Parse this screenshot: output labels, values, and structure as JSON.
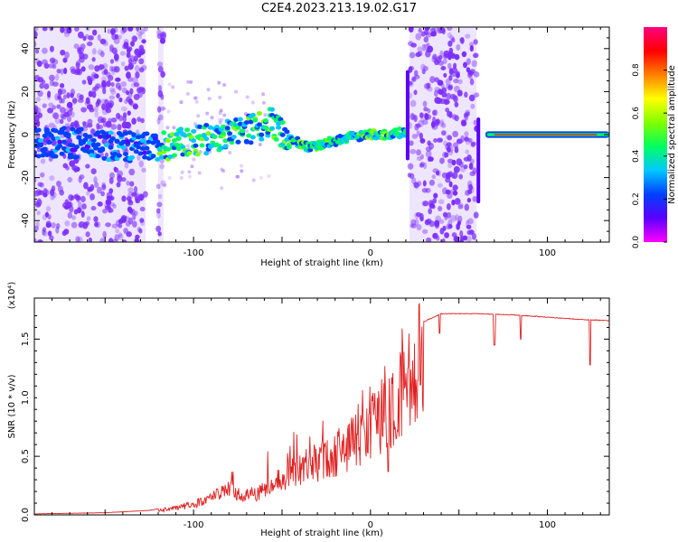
{
  "title": "C2E4.2023.213.19.02.G17",
  "colors": {
    "snr_line": "#e02020",
    "scatter": "#7b2cff",
    "background_noise": "#cdb6ff",
    "colorbar_stops": [
      "#ff00ff",
      "#5a00ff",
      "#0040ff",
      "#00c8ff",
      "#00ff60",
      "#80ff00",
      "#ffff00",
      "#ff8000",
      "#ff0000",
      "#ff0080"
    ]
  },
  "chart_data": [
    {
      "type": "heatmap",
      "xlabel": "Height of straight line (km)",
      "ylabel": "Frequency (Hz)",
      "xlim": [
        -190,
        135
      ],
      "ylim": [
        -50,
        50
      ],
      "xticks": [
        "-100",
        "0",
        "100"
      ],
      "yticks": [
        "-40",
        "-20",
        "0",
        "20",
        "40"
      ],
      "colorbar": {
        "label": "Normalized spectral amplitude",
        "range": [
          0.0,
          1.0
        ],
        "ticks": [
          "0.0",
          "0.2",
          "0.4",
          "0.6",
          "0.8"
        ]
      },
      "trace_frequency": {
        "x": [
          -190,
          -170,
          -150,
          -135,
          -120,
          -105,
          -90,
          -75,
          -65,
          -55,
          -50,
          -45,
          -40,
          -35,
          -30,
          -20,
          -10,
          0,
          10,
          18,
          65,
          80,
          100,
          120,
          135
        ],
        "y": [
          -3,
          -4,
          -5,
          -6,
          -6,
          -4,
          -2,
          1,
          4,
          6,
          0,
          -2,
          -4,
          -6,
          -5,
          -3,
          -1,
          0,
          0,
          1,
          0,
          0,
          0,
          0,
          0
        ]
      },
      "noise_bands_km": [
        [
          -190,
          -127
        ],
        [
          -120,
          -117
        ],
        [
          22,
          60
        ]
      ]
    },
    {
      "type": "line",
      "xlabel": "Height of straight line (km)",
      "ylabel": "SNR (10 * v/v)",
      "y_scale_note": "(x10⁴)",
      "xlim": [
        -190,
        135
      ],
      "ylim": [
        0.0,
        1.85
      ],
      "xticks": [
        "-100",
        "0",
        "100"
      ],
      "yticks": [
        "0.0",
        "0.5",
        "1.0",
        "1.5"
      ],
      "envelope": {
        "x": [
          -190,
          -150,
          -125,
          -110,
          -95,
          -85,
          -80,
          -70,
          -60,
          -50,
          -40,
          -30,
          -20,
          -10,
          0,
          10,
          20,
          30,
          40,
          60,
          80,
          100,
          120,
          135
        ],
        "y": [
          0.01,
          0.02,
          0.04,
          0.08,
          0.15,
          0.25,
          0.3,
          0.22,
          0.28,
          0.42,
          0.55,
          0.62,
          0.72,
          0.85,
          1.05,
          1.15,
          1.45,
          1.65,
          1.72,
          1.72,
          1.71,
          1.69,
          1.67,
          1.66
        ]
      },
      "dips": [
        {
          "x": 10,
          "y": 0.37
        },
        {
          "x": 39,
          "y": 1.55
        },
        {
          "x": 70,
          "y": 1.45
        },
        {
          "x": 85,
          "y": 1.5
        },
        {
          "x": 124,
          "y": 1.28
        }
      ]
    }
  ]
}
